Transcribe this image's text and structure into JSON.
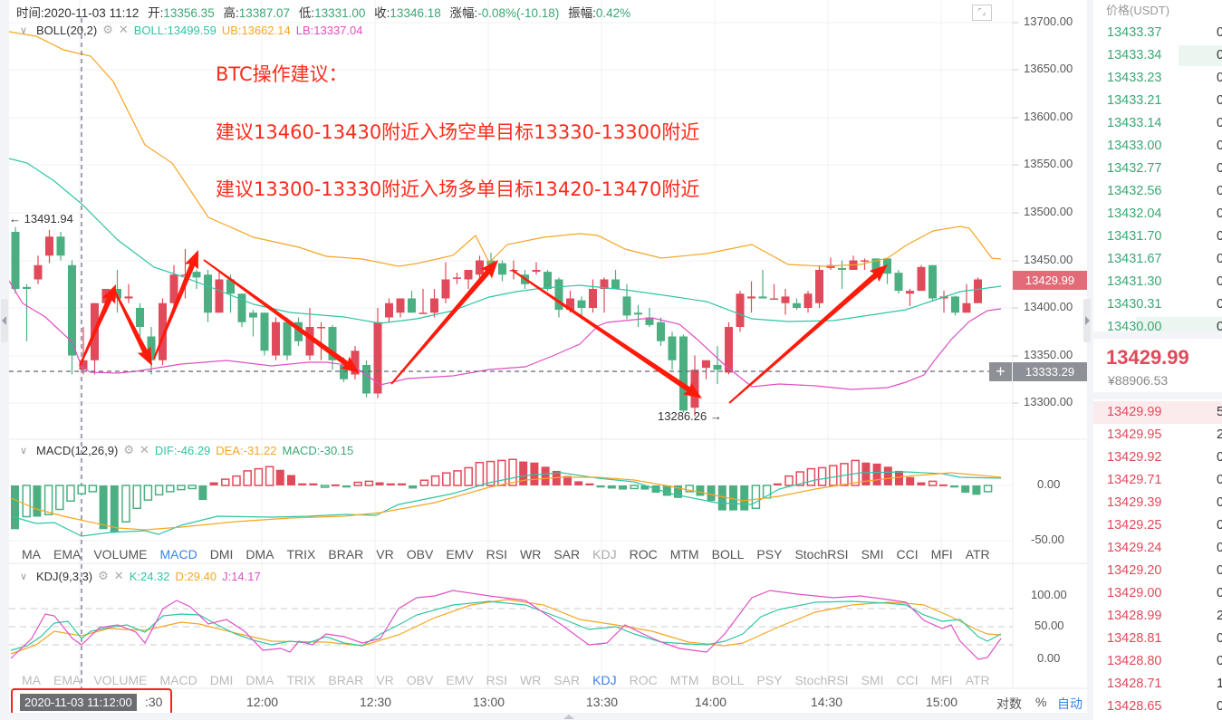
{
  "infobar": {
    "time_label": "时间:",
    "time": "2020-11-03 11:12",
    "open_label": "开:",
    "open": "13356.35",
    "high_label": "高:",
    "high": "13387.07",
    "low_label": "低:",
    "low": "13331.00",
    "close_label": "收:",
    "close": "13346.18",
    "change_label": "涨幅:",
    "change": "-0.08%(-10.18)",
    "amplitude_label": "振幅:",
    "amplitude": "0.42%"
  },
  "boll": {
    "name": "BOLL(20,2)",
    "mid": "BOLL:13499.59",
    "ub": "UB:13662.14",
    "lb": "LB:13337.04"
  },
  "macd": {
    "name": "MACD(12,26,9)",
    "dif": "DIF:-46.29",
    "dea": "DEA:-31.22",
    "macd": "MACD:-30.15"
  },
  "kdj": {
    "name": "KDJ(9,3,3)",
    "k": "K:24.32",
    "d": "D:29.40",
    "j": "J:14.17"
  },
  "annotation": {
    "title": "BTC操作建议：",
    "line1": "建议13460-13430附近入场空单目标13330-13300附近",
    "line2": "建议13300-13330附近入场多单目标13420-13470附近"
  },
  "price_axis": [
    "13700.00",
    "13650.00",
    "13600.00",
    "13550.00",
    "13500.00",
    "13450.00",
    "13400.00",
    "13350.00",
    "13300.00"
  ],
  "macd_axis": [
    "0.00",
    "-50.00"
  ],
  "kdj_axis": [
    "100.00",
    "50.00",
    "0.00"
  ],
  "last_price_tag": "13429.99",
  "crosshair_price_tag": "13333.29",
  "high_marker": "← 13491.94",
  "low_marker": "13286.26 →",
  "indicator_tabs": [
    "MA",
    "EMA",
    "VOLUME",
    "MACD",
    "DMI",
    "DMA",
    "TRIX",
    "BRAR",
    "VR",
    "OBV",
    "EMV",
    "RSI",
    "WR",
    "SAR",
    "KDJ",
    "ROC",
    "MTM",
    "BOLL",
    "PSY",
    "StochRSI",
    "SMI",
    "CCI",
    "MFI",
    "ATR"
  ],
  "time_axis": {
    "crosshair_time": "2020-11-03 11:12:00",
    "ticks": [
      ":30",
      "12:00",
      "12:30",
      "13:00",
      "13:30",
      "14:00",
      "14:30",
      "15:00"
    ]
  },
  "scale_options": {
    "log": "对数",
    "percent": "%",
    "auto": "自动"
  },
  "orderbook": {
    "header": "价格(USDT)",
    "asks": [
      "13433.37",
      "13433.34",
      "13433.23",
      "13433.21",
      "13433.14",
      "13433.00",
      "13432.77",
      "13432.56",
      "13432.04",
      "13431.70",
      "13431.67",
      "13431.30",
      "13430.31",
      "13430.00"
    ],
    "ask_qty": [
      "0",
      "0",
      "0",
      "0",
      "0",
      "0",
      "0",
      "0",
      "0",
      "0",
      "0",
      "0",
      "0",
      "0"
    ],
    "last_price": "13429.99",
    "last_price_cny": "¥88906.53",
    "bids": [
      "13429.99",
      "13429.95",
      "13429.92",
      "13429.71",
      "13429.39",
      "13429.25",
      "13429.24",
      "13429.20",
      "13429.00",
      "13428.99",
      "13428.81",
      "13428.80",
      "13428.71",
      "13428.65"
    ],
    "bid_qty": [
      "5",
      "2",
      "0",
      "0",
      "0",
      "0",
      "0",
      "0",
      "0",
      "2",
      "0",
      "0",
      "1",
      "0"
    ]
  },
  "colors": {
    "up": "#e04a5a",
    "down": "#4caf82",
    "boll_mid": "#2fc5a4",
    "boll_ub": "#f5a623",
    "boll_lb": "#e04fc4",
    "annotation": "#ff2a1a",
    "accent": "#3b82e6"
  }
}
